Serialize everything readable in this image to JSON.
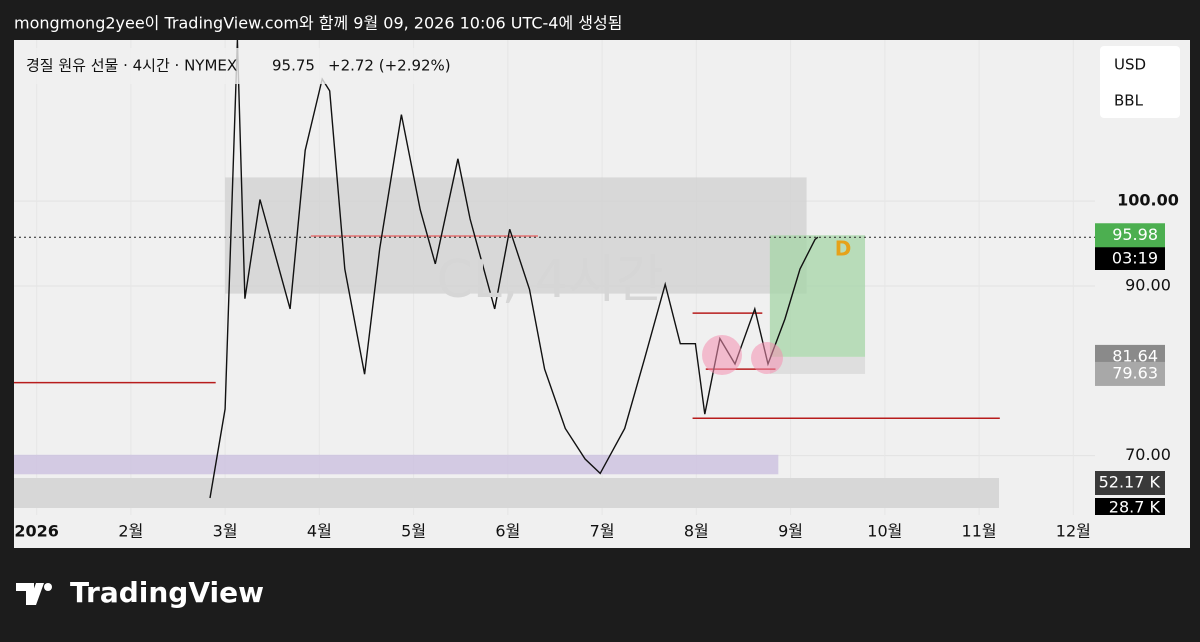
{
  "header": {
    "credit": "mongmong2yee이 TradingView.com와 함께 9월 09, 2026 10:06 UTC-4에 생성됨"
  },
  "chart_data": {
    "type": "line",
    "title": "경질 원유 선물 · 4시간 · NYMEX",
    "last_price": 95.75,
    "change": "+2.72 (+2.92%)",
    "currency": "USD",
    "unit": "BBL",
    "watermark": "CL, 4시간",
    "marker": "D",
    "countdown": "03:19",
    "volume_labels": [
      "52.17 K",
      "28.7 K"
    ],
    "color": "#111111",
    "x": [
      1.84,
      2.0,
      2.13,
      2.21,
      2.37,
      2.69,
      2.85,
      3.03,
      3.11,
      3.27,
      3.48,
      3.64,
      3.87,
      4.07,
      4.23,
      4.47,
      4.6,
      4.86,
      5.02,
      5.23,
      5.39,
      5.61,
      5.82,
      5.98,
      6.24,
      6.45,
      6.67,
      6.83,
      6.99,
      7.09,
      7.25,
      7.41,
      7.62,
      7.76,
      7.94,
      8.1,
      8.26,
      8.29
    ],
    "values": [
      65,
      75.5,
      119,
      88.5,
      100.2,
      87.3,
      106,
      114.4,
      113,
      92,
      79.6,
      94.4,
      110.2,
      99,
      92.6,
      105,
      97.9,
      87.3,
      96.7,
      89.6,
      80.2,
      73.2,
      69.6,
      67.9,
      73.2,
      81.4,
      90.2,
      83.2,
      83.2,
      74.9,
      83.8,
      80.8,
      87.3,
      80.8,
      86.1,
      92,
      95.5,
      95.75
    ],
    "xlim": [
      -0.24,
      11.23
    ],
    "ylim": [
      63,
      119
    ],
    "xticks": [
      {
        "value": 0,
        "label": "2026"
      },
      {
        "value": 1,
        "label": "2월"
      },
      {
        "value": 2,
        "label": "3월"
      },
      {
        "value": 3,
        "label": "4월"
      },
      {
        "value": 4,
        "label": "5월"
      },
      {
        "value": 5,
        "label": "6월"
      },
      {
        "value": 6,
        "label": "7월"
      },
      {
        "value": 7,
        "label": "8월"
      },
      {
        "value": 8,
        "label": "9월"
      },
      {
        "value": 9,
        "label": "10월"
      },
      {
        "value": 10,
        "label": "11월"
      },
      {
        "value": 11,
        "label": "12월"
      }
    ],
    "yticks": [
      {
        "value": 70,
        "label": "70.00"
      },
      {
        "value": 90,
        "label": "90.00"
      },
      {
        "value": 100,
        "label": "100.00"
      }
    ],
    "grid": true,
    "price_labels": [
      {
        "value": 95.98,
        "color": "#4caf50"
      },
      {
        "value": 81.64,
        "color": "#8a8a8a"
      },
      {
        "value": 79.63,
        "color": "#a8a8a8"
      }
    ],
    "zones": [
      {
        "x": [
          2.0,
          8.17
        ],
        "y": [
          89.1,
          102.8
        ],
        "color": "#d0d0d0"
      },
      {
        "x": [
          -0.24,
          7.87
        ],
        "y": [
          67.8,
          70.1
        ],
        "color": "#c9bedf"
      },
      {
        "x": [
          7.78,
          8.79
        ],
        "y": [
          81.64,
          95.98
        ],
        "color": "#a5d6a7"
      },
      {
        "x": [
          7.78,
          8.79
        ],
        "y": [
          79.63,
          81.64
        ],
        "color": "#d8d8d8"
      }
    ],
    "levels": [
      {
        "x": [
          -0.24,
          1.9
        ],
        "y": 78.6,
        "color": "#b71c1c"
      },
      {
        "x": [
          6.96,
          10.22
        ],
        "y": 74.4,
        "color": "#b71c1c"
      },
      {
        "x": [
          6.96,
          7.7
        ],
        "y": 86.8,
        "color": "#b71c1c"
      },
      {
        "x": [
          7.1,
          7.84
        ],
        "y": 80.2,
        "color": "#b71c1c"
      },
      {
        "x": [
          2.91,
          5.32
        ],
        "y": 95.9,
        "color": "#e57373"
      }
    ]
  }
}
